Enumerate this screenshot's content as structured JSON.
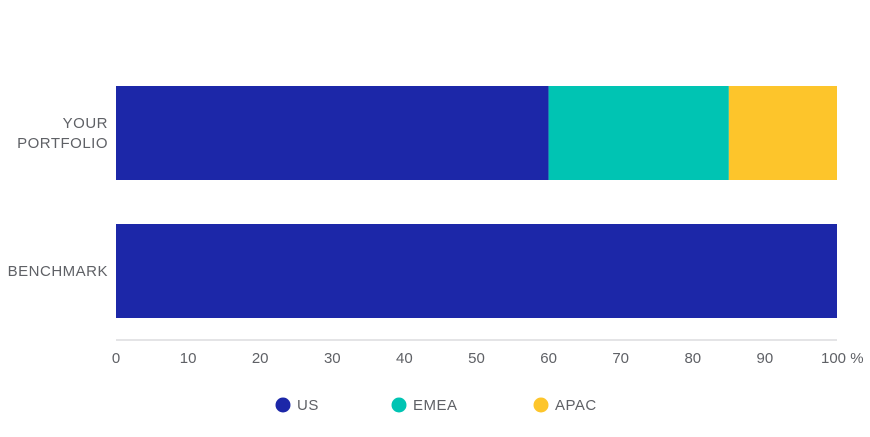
{
  "chart_data": {
    "type": "bar",
    "orientation": "horizontal",
    "stacked": true,
    "categories": [
      [
        "YOUR",
        "PORTFOLIO"
      ],
      [
        "BENCHMARK"
      ]
    ],
    "series": [
      {
        "name": "US",
        "color": "#1c27a8",
        "values": [
          60,
          100
        ]
      },
      {
        "name": "EMEA",
        "color": "#00c4b3",
        "values": [
          25,
          0
        ]
      },
      {
        "name": "APAC",
        "color": "#fdc52b",
        "values": [
          15,
          0
        ]
      }
    ],
    "xlim": [
      0,
      100
    ],
    "xticks": [
      "0",
      "10",
      "20",
      "30",
      "40",
      "50",
      "60",
      "70",
      "80",
      "90",
      "100 %"
    ],
    "grid": false,
    "legend_position": "bottom"
  }
}
